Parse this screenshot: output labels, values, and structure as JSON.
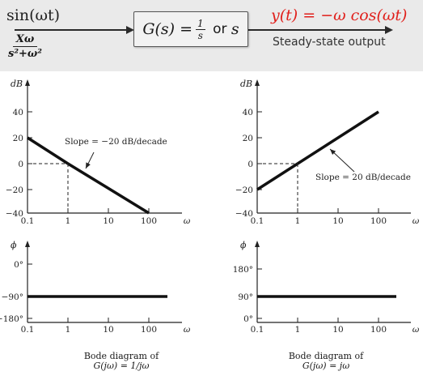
{
  "header": {
    "input_signal": "sin(ωt)",
    "input_transform_num": "Xω",
    "input_transform_den": "s²+ω²",
    "transfer_prefix": "G(s) = ",
    "transfer_frac_num": "1",
    "transfer_frac_den": "s",
    "transfer_or": " or ",
    "transfer_alt": "s",
    "output_signal": "y(t) = −ω cos(ωt)",
    "output_label": "Steady-state output"
  },
  "left_mag": {
    "axis_unit": "dB",
    "y_ticks": [
      "40",
      "20",
      "0",
      "−20",
      "−40"
    ],
    "x_ticks": [
      "0.1",
      "1",
      "10",
      "100"
    ],
    "x_symbol": "ω",
    "annotation": "Slope = −20 dB/decade"
  },
  "left_phase": {
    "axis_unit": "ϕ",
    "y_ticks": [
      "0°",
      "−90°",
      "−180°"
    ],
    "x_ticks": [
      "0.1",
      "1",
      "10",
      "100"
    ],
    "x_symbol": "ω"
  },
  "right_mag": {
    "axis_unit": "dB",
    "y_ticks": [
      "40",
      "20",
      "0",
      "−20",
      "−40"
    ],
    "x_ticks": [
      "0.1",
      "1",
      "10",
      "100"
    ],
    "x_symbol": "ω",
    "annotation": "Slope = 20 dB/decade"
  },
  "right_phase": {
    "axis_unit": "ϕ",
    "y_ticks": [
      "180°",
      "90°",
      "0°"
    ],
    "x_ticks": [
      "0.1",
      "1",
      "10",
      "100"
    ],
    "x_symbol": "ω"
  },
  "captions": {
    "left_line1": "Bode diagram of",
    "left_line2": "G(jω) = 1/jω",
    "right_line1": "Bode diagram of",
    "right_line2": "G(jω) = jω"
  },
  "chart_data": [
    {
      "type": "line",
      "xscale": "log",
      "xlim": [
        0.1,
        100
      ],
      "ylim": [
        -40,
        40
      ],
      "ylabel": "dB",
      "xlabel": "ω",
      "series": [
        {
          "x": [
            0.1,
            1,
            100
          ],
          "y": [
            20,
            0,
            -40
          ]
        }
      ],
      "annotation": "Slope = −20 dB/decade"
    },
    {
      "type": "line",
      "xscale": "log",
      "xlim": [
        0.1,
        100
      ],
      "ylim": [
        -180,
        0
      ],
      "ylabel": "ϕ",
      "xlabel": "ω",
      "series": [
        {
          "x": [
            0.1,
            100
          ],
          "y": [
            -90,
            -90
          ]
        }
      ]
    },
    {
      "type": "line",
      "xscale": "log",
      "xlim": [
        0.1,
        100
      ],
      "ylim": [
        -40,
        40
      ],
      "ylabel": "dB",
      "xlabel": "ω",
      "series": [
        {
          "x": [
            0.1,
            1,
            100
          ],
          "y": [
            -20,
            0,
            40
          ]
        }
      ],
      "annotation": "Slope = 20 dB/decade"
    },
    {
      "type": "line",
      "xscale": "log",
      "xlim": [
        0.1,
        100
      ],
      "ylim": [
        0,
        180
      ],
      "ylabel": "ϕ",
      "xlabel": "ω",
      "series": [
        {
          "x": [
            0.1,
            100
          ],
          "y": [
            90,
            90
          ]
        }
      ]
    }
  ]
}
